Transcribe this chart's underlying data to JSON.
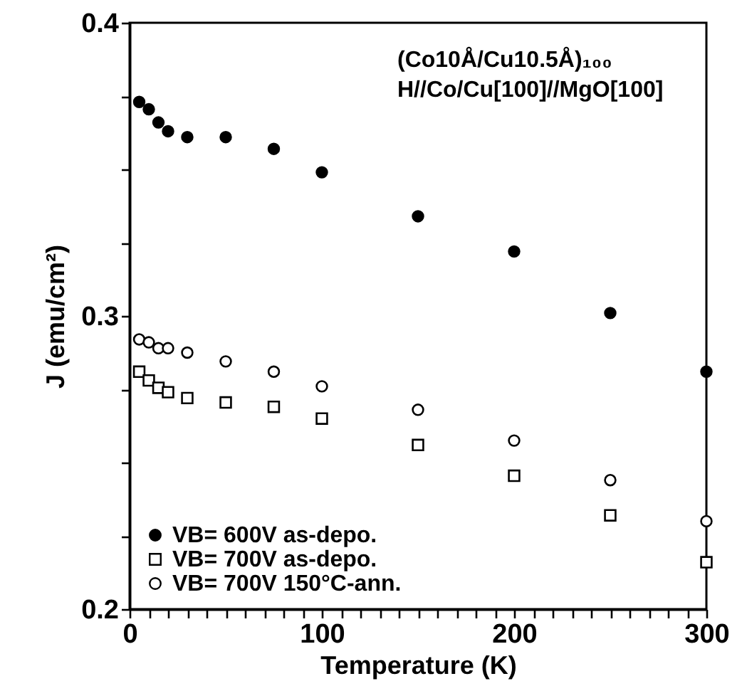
{
  "chart_data": {
    "type": "scatter",
    "xlabel": "Temperature  (K)",
    "ylabel": "J (emu/cm²)",
    "annotations": [
      "(Co10Å/Cu10.5Å)₁₀₀",
      "H//Co/Cu[100]//MgO[100]"
    ],
    "xlim": [
      0,
      300
    ],
    "ylim": [
      0.2,
      0.4
    ],
    "xticks": [
      0,
      {
        "value": 10,
        "label": null
      },
      {
        "value": 20,
        "label": null
      },
      {
        "value": 30,
        "label": null
      },
      {
        "value": 40,
        "label": null
      },
      {
        "value": 50,
        "label": null
      },
      {
        "value": 60,
        "label": null
      },
      {
        "value": 70,
        "label": null
      },
      {
        "value": 80,
        "label": null
      },
      {
        "value": 90,
        "label": null
      },
      100,
      {
        "value": 110,
        "label": null
      },
      {
        "value": 120,
        "label": null
      },
      {
        "value": 130,
        "label": null
      },
      {
        "value": 140,
        "label": null
      },
      {
        "value": 150,
        "label": null
      },
      {
        "value": 160,
        "label": null
      },
      {
        "value": 170,
        "label": null
      },
      {
        "value": 180,
        "label": null
      },
      {
        "value": 190,
        "label": null
      },
      200,
      {
        "value": 210,
        "label": null
      },
      {
        "value": 220,
        "label": null
      },
      {
        "value": 230,
        "label": null
      },
      {
        "value": 240,
        "label": null
      },
      {
        "value": 250,
        "label": null
      },
      {
        "value": 260,
        "label": null
      },
      {
        "value": 270,
        "label": null
      },
      {
        "value": 280,
        "label": null
      },
      {
        "value": 290,
        "label": null
      },
      300
    ],
    "yticks": [
      0.2,
      {
        "value": 0.225,
        "label": null
      },
      {
        "value": 0.25,
        "label": null
      },
      {
        "value": 0.275,
        "label": null
      },
      0.3,
      {
        "value": 0.325,
        "label": null
      },
      {
        "value": 0.35,
        "label": null
      },
      {
        "value": 0.375,
        "label": null
      },
      0.4
    ],
    "grid": false,
    "legend": "bottom left",
    "x": [
      5,
      10,
      15,
      20,
      30,
      50,
      75,
      100,
      150,
      200,
      250,
      300
    ],
    "series": [
      {
        "name": "VB= 600V  as-depo.",
        "color": "#000000",
        "marker": "circle",
        "values": [
          0.373,
          0.3705,
          0.366,
          0.363,
          0.361,
          0.361,
          0.357,
          0.349,
          0.334,
          0.322,
          0.301,
          0.281
        ]
      },
      {
        "name": "VB= 700V  as-depo.",
        "color": "#ffffff",
        "marker": "square",
        "values": [
          0.281,
          0.278,
          0.2755,
          0.274,
          0.272,
          0.2705,
          0.269,
          0.265,
          0.256,
          0.2455,
          0.232,
          0.216
        ]
      },
      {
        "name": "VB= 700V  150°C-ann.",
        "color": "#ffffff",
        "marker": "circle",
        "values": [
          0.292,
          0.291,
          0.289,
          0.289,
          0.2875,
          0.2845,
          0.281,
          0.276,
          0.268,
          0.2575,
          0.244,
          0.23
        ]
      }
    ]
  }
}
